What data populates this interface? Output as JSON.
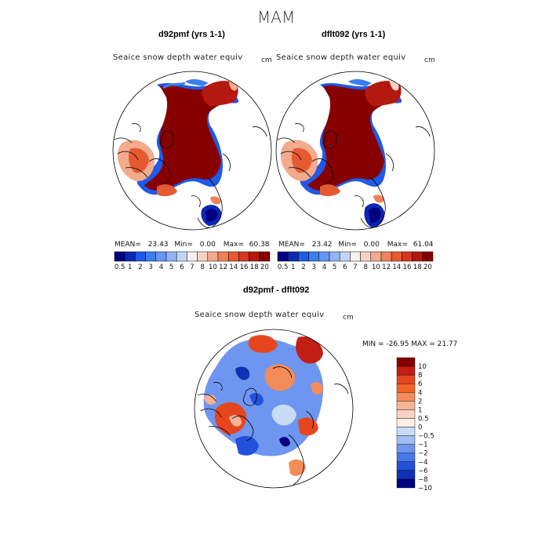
{
  "season_title": "MAM",
  "panels": [
    {
      "title": "d92pmf (yrs 1-1)",
      "variable": "Seaice snow depth water equiv",
      "units": "cm",
      "stats": {
        "mean_label": "MEAN=",
        "mean": "23.43",
        "min_label": "Min=",
        "min": "0.00",
        "max_label": "Max=",
        "max": "60.38"
      }
    },
    {
      "title": "dflt092 (yrs 1-1)",
      "variable": "Seaice snow depth water equiv",
      "units": "cm",
      "stats": {
        "mean_label": "MEAN=",
        "mean": "23.42",
        "min_label": "Min=",
        "min": "0.00",
        "max_label": "Max=",
        "max": "61.04"
      }
    }
  ],
  "diff_panel": {
    "title": "d92pmf - dflt092",
    "variable": "Seaice snow depth water equiv",
    "units": "cm",
    "minmax_text": "MIN = -26.95 MAX =  21.77"
  },
  "chart_data": [
    {
      "type": "heatmap",
      "projection": "north polar stereographic",
      "title": "d92pmf (yrs 1-1)",
      "variable": "Seaice snow depth water equiv",
      "units": "cm",
      "mean": 23.43,
      "min": 0.0,
      "max": 60.38,
      "colorbar_levels": [
        "0.5",
        "1",
        "2",
        "3",
        "4",
        "5",
        "6",
        "7",
        "8",
        "10",
        "12",
        "14",
        "16",
        "18",
        "20"
      ]
    },
    {
      "type": "heatmap",
      "projection": "north polar stereographic",
      "title": "dflt092 (yrs 1-1)",
      "variable": "Seaice snow depth water equiv",
      "units": "cm",
      "mean": 23.42,
      "min": 0.0,
      "max": 61.04,
      "colorbar_levels": [
        "0.5",
        "1",
        "2",
        "3",
        "4",
        "5",
        "6",
        "7",
        "8",
        "10",
        "12",
        "14",
        "16",
        "18",
        "20"
      ]
    },
    {
      "type": "heatmap",
      "projection": "north polar stereographic",
      "title": "d92pmf - dflt092",
      "variable": "Seaice snow depth water equiv",
      "units": "cm",
      "min": -26.95,
      "max": 21.77,
      "colorbar_levels": [
        "10",
        "8",
        "6",
        "4",
        "2",
        "1",
        "0.5",
        "0",
        "−0.5",
        "−1",
        "−2",
        "−4",
        "−6",
        "−8",
        "−10"
      ]
    }
  ],
  "palettes": {
    "abs": [
      "#00007f",
      "#0a28b4",
      "#1e5ae6",
      "#3c7ef0",
      "#6496f5",
      "#91b4f7",
      "#c3d6fa",
      "#f7f2ec",
      "#fad2c3",
      "#f4aa8c",
      "#ef825a",
      "#e65a32",
      "#d7371e",
      "#b4190f",
      "#870000"
    ],
    "diff_top_to_bottom": [
      "#870000",
      "#c31e14",
      "#e6461e",
      "#f46428",
      "#f48c5a",
      "#f7b496",
      "#fad2c3",
      "#fbefe6",
      "#c8dcf5",
      "#a0bef5",
      "#6e96f0",
      "#4678e6",
      "#2350dc",
      "#0f32b4",
      "#000080"
    ]
  }
}
